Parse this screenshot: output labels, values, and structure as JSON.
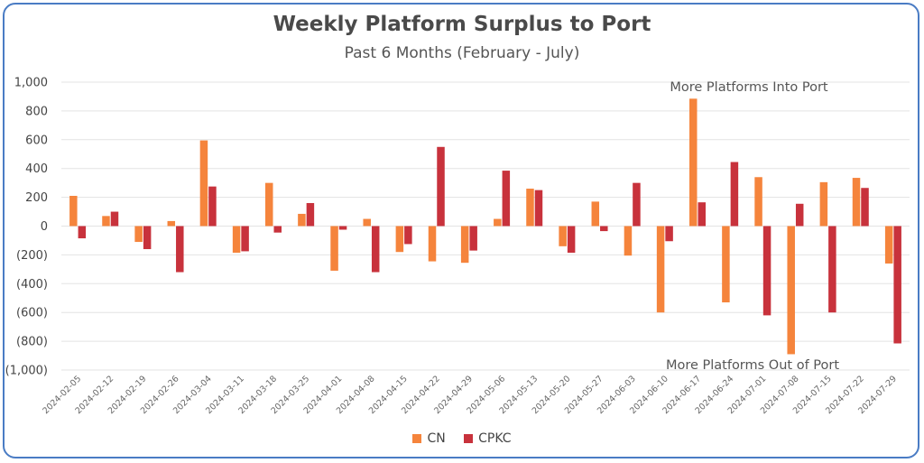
{
  "chart_data": {
    "type": "bar",
    "title": "Weekly Platform Surplus to Port",
    "subtitle": "Past 6 Months (February - July)",
    "categories": [
      "2024-02-05",
      "2024-02-12",
      "2024-02-19",
      "2024-02-26",
      "2024-03-04",
      "2024-03-11",
      "2024-03-18",
      "2024-03-25",
      "2024-04-01",
      "2024-04-08",
      "2024-04-15",
      "2024-04-22",
      "2024-04-29",
      "2024-05-06",
      "2024-05-13",
      "2024-05-20",
      "2024-05-27",
      "2024-06-03",
      "2024-06-10",
      "2024-06-17",
      "2024-06-24",
      "2024-07-01",
      "2024-07-08",
      "2024-07-15",
      "2024-07-22",
      "2024-07-29"
    ],
    "series": [
      {
        "name": "CN",
        "color": "#f5843c",
        "values": [
          210,
          70,
          -110,
          35,
          595,
          -185,
          300,
          85,
          -310,
          50,
          -180,
          -245,
          -255,
          50,
          260,
          -140,
          170,
          -205,
          -600,
          885,
          -530,
          340,
          -890,
          305,
          335,
          -260
        ]
      },
      {
        "name": "CPKC",
        "color": "#c8323c",
        "values": [
          -85,
          100,
          -160,
          -320,
          275,
          -175,
          -45,
          160,
          -25,
          -320,
          -125,
          550,
          -170,
          385,
          250,
          -185,
          -35,
          300,
          -105,
          165,
          445,
          -620,
          155,
          -600,
          265,
          -815
        ]
      }
    ],
    "ylim": [
      -1000,
      1000
    ],
    "yticks": [
      -1000,
      -800,
      -600,
      -400,
      -200,
      0,
      200,
      400,
      600,
      800,
      1000
    ],
    "ytick_labels": [
      "(1,000)",
      "(800)",
      "(600)",
      "(400)",
      "(200)",
      "0",
      "200",
      "400",
      "600",
      "800",
      "1,000"
    ],
    "annotations": [
      "More Platforms Into Port",
      "More Platforms Out of Port"
    ],
    "grid": true,
    "legend": "bottom"
  }
}
